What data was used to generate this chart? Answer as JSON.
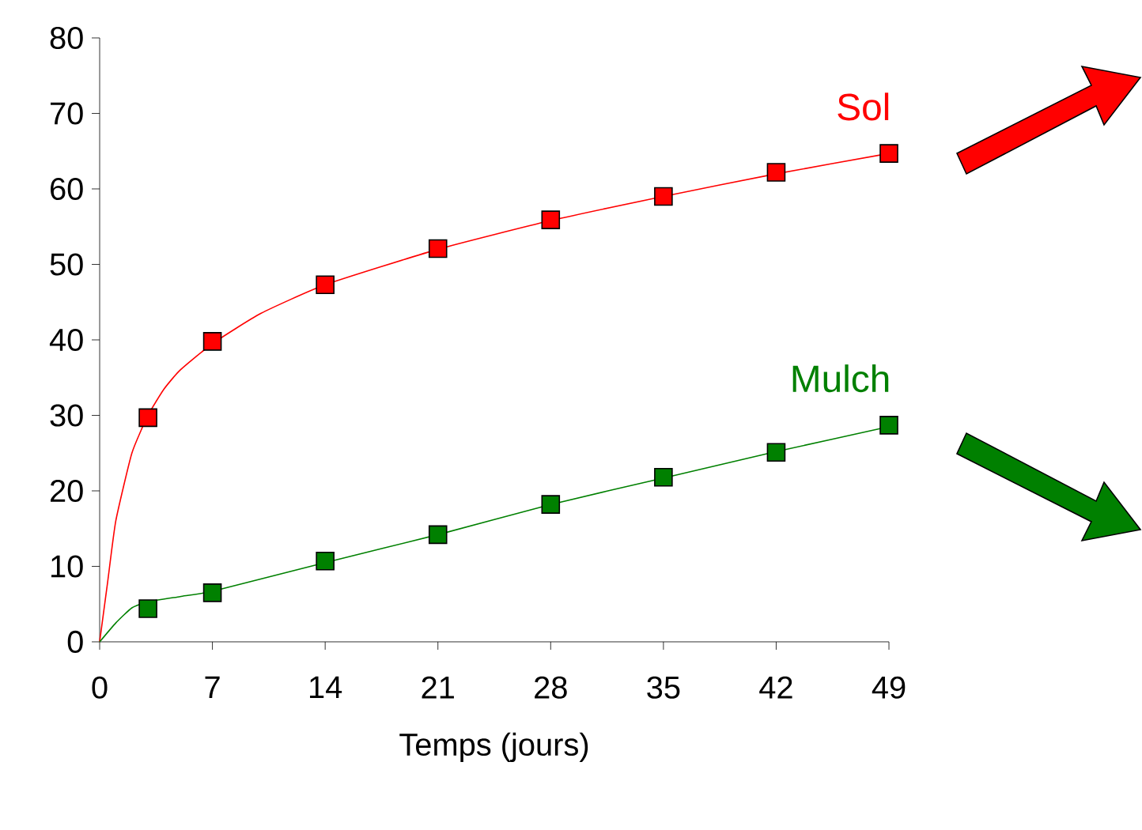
{
  "chart_data": {
    "type": "line",
    "xlabel": "Temps (jours)",
    "xlim": [
      0,
      49
    ],
    "xticks": [
      0,
      7,
      14,
      21,
      28,
      35,
      42,
      49
    ],
    "ylim": [
      0,
      80
    ],
    "yticks": [
      0,
      10,
      20,
      30,
      40,
      50,
      60,
      70,
      80
    ],
    "grid": false,
    "series": [
      {
        "color": "#ff0000",
        "marker": "none",
        "x": [
          0,
          0.5,
          1,
          2,
          3,
          4,
          5,
          7,
          10,
          14,
          21,
          28,
          35,
          42,
          49
        ],
        "values": [
          0,
          8,
          16,
          25,
          30,
          33.5,
          36,
          39.5,
          43.5,
          47.3,
          52,
          55.8,
          59,
          62,
          64.7
        ]
      },
      {
        "color": "#008000",
        "marker": "none",
        "x": [
          0,
          1,
          2,
          3,
          5,
          7,
          14,
          21,
          28,
          35,
          42,
          49
        ],
        "values": [
          0,
          2.5,
          4.5,
          5.3,
          6,
          6.7,
          10.5,
          14.2,
          18.2,
          21.7,
          25.2,
          28.5
        ]
      },
      {
        "name": "Sol",
        "type": "scatter",
        "color": "#ff0000",
        "marker": "square",
        "x": [
          3,
          7,
          14,
          21,
          28,
          35,
          42,
          49
        ],
        "values": [
          29.7,
          39.8,
          47.3,
          52.1,
          55.9,
          59,
          62.2,
          64.7
        ]
      },
      {
        "name": "Mulch",
        "type": "scatter",
        "color": "#008000",
        "marker": "square",
        "x": [
          3,
          7,
          14,
          21,
          28,
          35,
          42,
          49
        ],
        "values": [
          4.4,
          6.5,
          10.7,
          14.2,
          18.2,
          21.8,
          25.1,
          28.7
        ]
      }
    ]
  }
}
